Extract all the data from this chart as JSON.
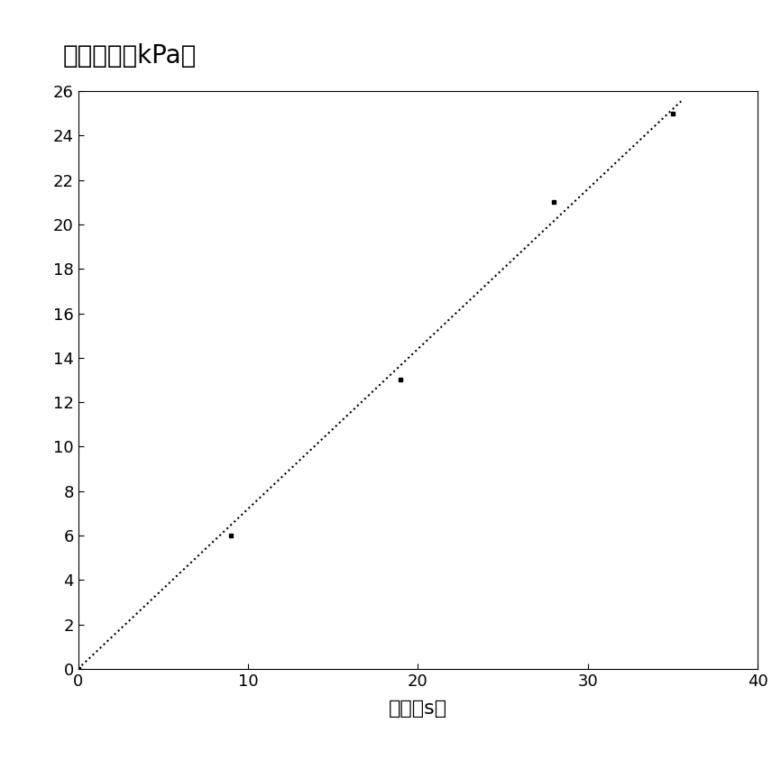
{
  "title": "渗透压力（kPa）",
  "xlabel": "时间（s）",
  "xlim": [
    0,
    40
  ],
  "ylim": [
    0,
    26
  ],
  "xticks": [
    0,
    10,
    20,
    30,
    40
  ],
  "yticks": [
    0,
    2,
    4,
    6,
    8,
    10,
    12,
    14,
    16,
    18,
    20,
    22,
    24,
    26
  ],
  "data_points_x": [
    0,
    9,
    19,
    28,
    35
  ],
  "data_points_y": [
    0,
    6,
    13,
    21,
    25
  ],
  "line_color": "#000000",
  "marker_color": "#000000",
  "background_color": "#ffffff",
  "title_fontsize": 20,
  "label_fontsize": 16,
  "tick_fontsize": 13
}
